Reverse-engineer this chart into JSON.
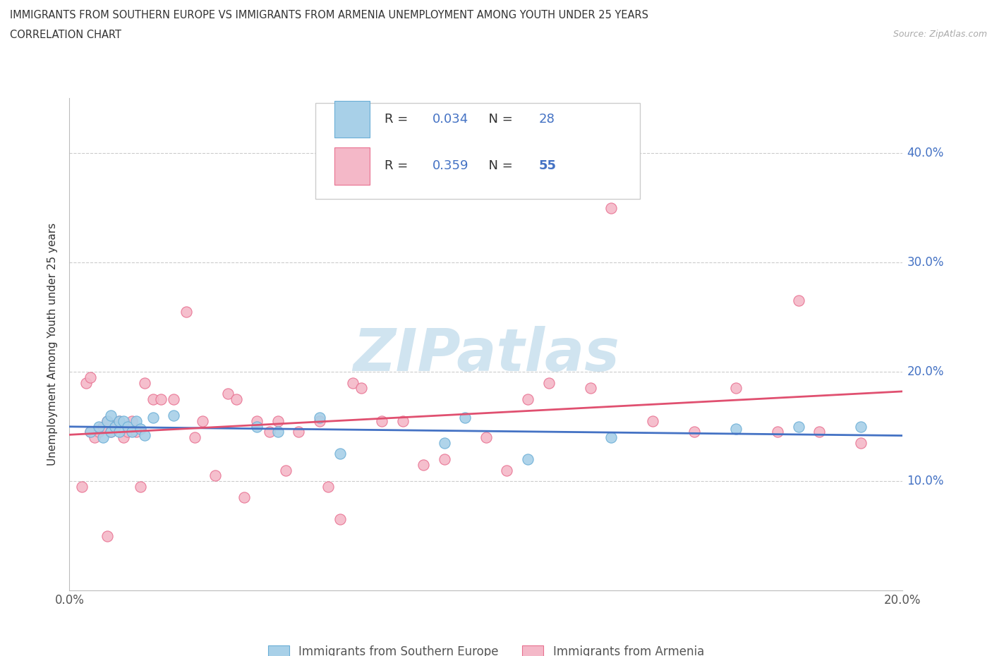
{
  "title_line1": "IMMIGRANTS FROM SOUTHERN EUROPE VS IMMIGRANTS FROM ARMENIA UNEMPLOYMENT AMONG YOUTH UNDER 25 YEARS",
  "title_line2": "CORRELATION CHART",
  "source_text": "Source: ZipAtlas.com",
  "ylabel": "Unemployment Among Youth under 25 years",
  "xlim": [
    0.0,
    0.2
  ],
  "ylim": [
    0.0,
    0.45
  ],
  "ytick_values": [
    0.1,
    0.2,
    0.3,
    0.4
  ],
  "xtick_values": [
    0.0,
    0.02,
    0.04,
    0.06,
    0.08,
    0.1,
    0.12,
    0.14,
    0.16,
    0.18,
    0.2
  ],
  "series1_label": "Immigrants from Southern Europe",
  "series1_color": "#a8d0e8",
  "series1_edge_color": "#6aaed6",
  "series1_R": "0.034",
  "series1_N": "28",
  "series2_label": "Immigrants from Armenia",
  "series2_color": "#f4b8c8",
  "series2_edge_color": "#e87090",
  "series2_R": "0.359",
  "series2_N": "55",
  "trend1_color": "#4472c4",
  "trend2_color": "#e05070",
  "watermark_color": "#d0e4f0",
  "background_color": "#ffffff",
  "grid_color": "#cccccc",
  "axis_label_color": "#4472c4",
  "text_color": "#333333",
  "series1_x": [
    0.005,
    0.007,
    0.008,
    0.009,
    0.01,
    0.01,
    0.011,
    0.012,
    0.012,
    0.013,
    0.014,
    0.015,
    0.016,
    0.017,
    0.018,
    0.02,
    0.025,
    0.045,
    0.05,
    0.06,
    0.065,
    0.09,
    0.095,
    0.11,
    0.13,
    0.16,
    0.175,
    0.19
  ],
  "series1_y": [
    0.145,
    0.15,
    0.14,
    0.155,
    0.145,
    0.16,
    0.15,
    0.145,
    0.155,
    0.155,
    0.15,
    0.145,
    0.155,
    0.148,
    0.142,
    0.158,
    0.16,
    0.15,
    0.145,
    0.158,
    0.125,
    0.135,
    0.158,
    0.12,
    0.14,
    0.148,
    0.15,
    0.15
  ],
  "series2_x": [
    0.003,
    0.004,
    0.005,
    0.005,
    0.006,
    0.007,
    0.008,
    0.009,
    0.009,
    0.01,
    0.011,
    0.012,
    0.013,
    0.014,
    0.015,
    0.016,
    0.017,
    0.018,
    0.02,
    0.022,
    0.025,
    0.028,
    0.03,
    0.032,
    0.035,
    0.038,
    0.04,
    0.042,
    0.045,
    0.048,
    0.05,
    0.052,
    0.055,
    0.06,
    0.062,
    0.065,
    0.068,
    0.07,
    0.075,
    0.08,
    0.085,
    0.09,
    0.1,
    0.105,
    0.11,
    0.115,
    0.125,
    0.13,
    0.14,
    0.15,
    0.16,
    0.17,
    0.175,
    0.18,
    0.19
  ],
  "series2_y": [
    0.095,
    0.19,
    0.195,
    0.145,
    0.14,
    0.145,
    0.15,
    0.05,
    0.155,
    0.145,
    0.15,
    0.155,
    0.14,
    0.145,
    0.155,
    0.145,
    0.095,
    0.19,
    0.175,
    0.175,
    0.175,
    0.255,
    0.14,
    0.155,
    0.105,
    0.18,
    0.175,
    0.085,
    0.155,
    0.145,
    0.155,
    0.11,
    0.145,
    0.155,
    0.095,
    0.065,
    0.19,
    0.185,
    0.155,
    0.155,
    0.115,
    0.12,
    0.14,
    0.11,
    0.175,
    0.19,
    0.185,
    0.35,
    0.155,
    0.145,
    0.185,
    0.145,
    0.265,
    0.145,
    0.135
  ]
}
